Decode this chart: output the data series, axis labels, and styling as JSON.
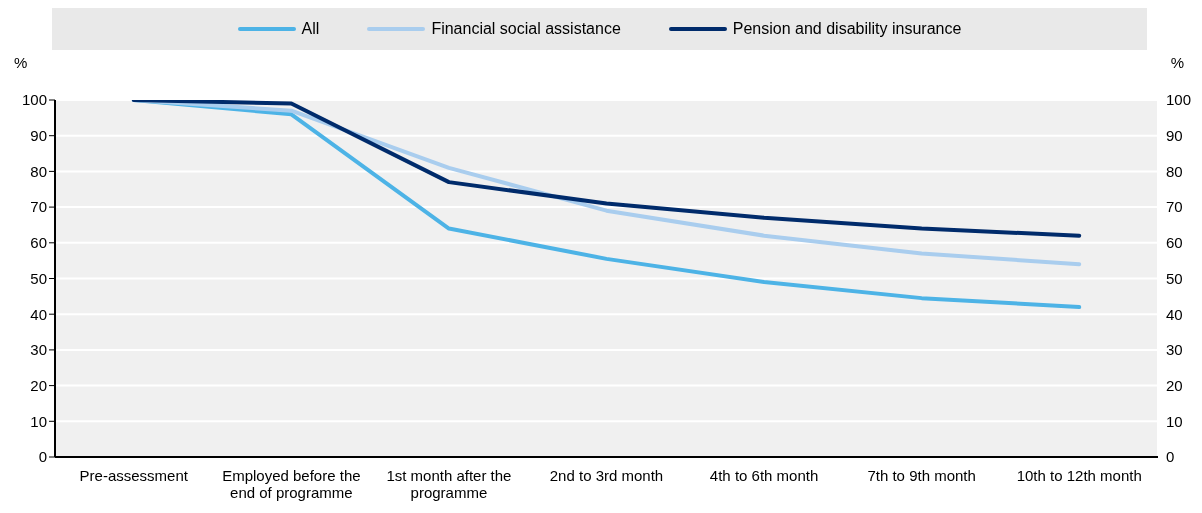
{
  "chart_data": {
    "type": "line",
    "ylabel": "%",
    "y2label": "%",
    "categories": [
      "Pre-assessment",
      "Employed before the end of programme",
      "1st month after the programme",
      "2nd to 3rd month",
      "4th to 6th month",
      "7th to 9th month",
      "10th to 12th month"
    ],
    "series": [
      {
        "name": "All",
        "color": "#4db3e6",
        "values": [
          100,
          96,
          64,
          55.5,
          49,
          44.5,
          42
        ]
      },
      {
        "name": "Financial social assistance",
        "color": "#a9cdee",
        "values": [
          100,
          97,
          81,
          69,
          62,
          57,
          54
        ]
      },
      {
        "name": "Pension and disability insurance",
        "color": "#002b6b",
        "values": [
          100,
          99,
          77,
          71,
          67,
          64,
          62
        ]
      }
    ],
    "ylim": [
      0,
      100
    ],
    "yticks": [
      0,
      10,
      20,
      30,
      40,
      50,
      60,
      70,
      80,
      90,
      100
    ],
    "y2lim": [
      0,
      100
    ],
    "y2ticks": [
      0,
      10,
      20,
      30,
      40,
      50,
      60,
      70,
      80,
      90,
      100
    ],
    "grid": true,
    "legend": "top",
    "marker": "none",
    "line_style": "solid"
  }
}
